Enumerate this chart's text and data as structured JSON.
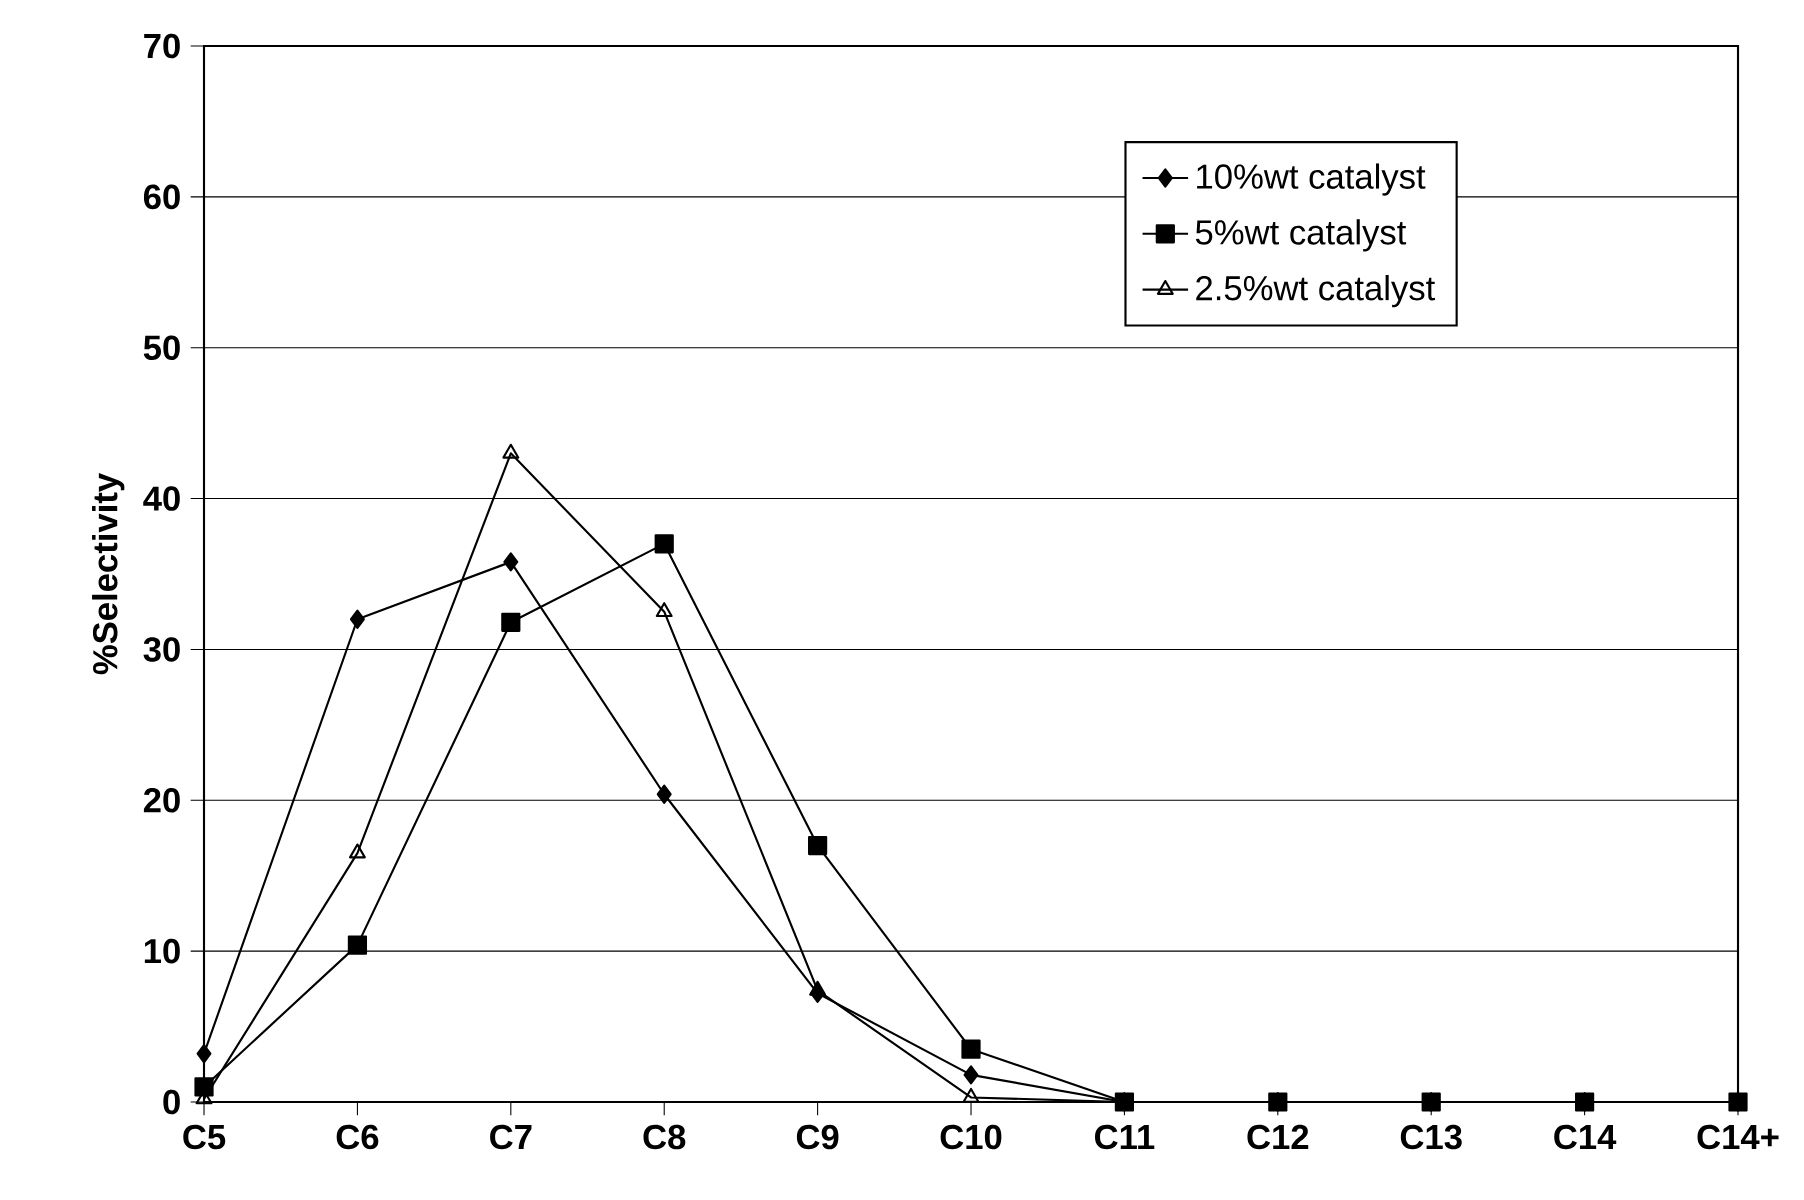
{
  "chart_data": {
    "type": "line",
    "ylabel": "%Selectivity",
    "categories": [
      "C5",
      "C6",
      "C7",
      "C8",
      "C9",
      "C10",
      "C11",
      "C12",
      "C13",
      "C14",
      "C14+"
    ],
    "series": [
      {
        "name": "10%wt catalyst",
        "color": "#000000",
        "marker": "diamond",
        "values": [
          3.2,
          32,
          35.8,
          20.4,
          7.2,
          1.8,
          0,
          0,
          0,
          0,
          0
        ]
      },
      {
        "name": "5%wt catalyst",
        "color": "#000000",
        "marker": "square",
        "values": [
          1.0,
          10.4,
          31.8,
          37,
          17,
          3.5,
          0,
          0,
          0,
          0,
          0
        ]
      },
      {
        "name": "2.5%wt catalyst",
        "color": "#000000",
        "marker": "triangle",
        "values": [
          0.2,
          16.5,
          43,
          32.5,
          7.4,
          0.3,
          0,
          0,
          0,
          0,
          0
        ]
      }
    ],
    "ylim": [
      0,
      70
    ],
    "yticks": [
      0,
      10,
      20,
      30,
      40,
      50,
      60,
      70
    ],
    "grid": "y",
    "legend": "top right",
    "line_style": "solid"
  }
}
